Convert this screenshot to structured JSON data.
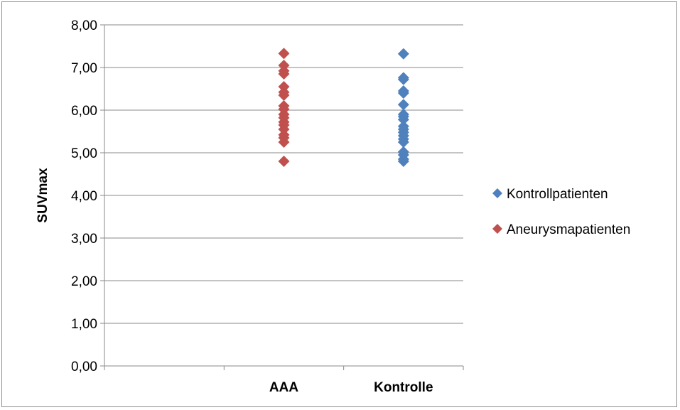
{
  "chart_data": {
    "type": "scatter",
    "ylabel": "SUVmax",
    "xlabel": "",
    "categories": [
      "AAA",
      "Kontrolle"
    ],
    "ylim": [
      0,
      8
    ],
    "y_ticks": [
      "0,00",
      "1,00",
      "2,00",
      "3,00",
      "4,00",
      "5,00",
      "6,00",
      "7,00",
      "8,00"
    ],
    "grid": true,
    "legend_position": "right",
    "series": [
      {
        "name": "Kontrollpatienten",
        "color": "#4f81bd",
        "category": "Kontrolle",
        "values": [
          7.32,
          6.76,
          6.72,
          6.45,
          6.4,
          6.13,
          5.9,
          5.85,
          5.78,
          5.62,
          5.55,
          5.48,
          5.4,
          5.32,
          5.25,
          5.02,
          4.95,
          4.85,
          4.8
        ]
      },
      {
        "name": "Aneurysmapatienten",
        "color": "#c0504d",
        "category": "AAA",
        "values": [
          7.33,
          7.05,
          6.92,
          6.85,
          6.55,
          6.42,
          6.35,
          6.1,
          6.02,
          5.9,
          5.82,
          5.72,
          5.65,
          5.55,
          5.42,
          5.35,
          5.25,
          4.8
        ]
      }
    ]
  }
}
